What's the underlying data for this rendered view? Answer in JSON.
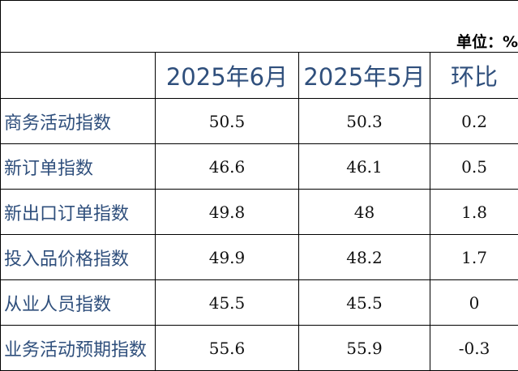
{
  "unit_label": "单位：%",
  "columns": [
    "",
    "2025年6月",
    "2025年5月",
    "环比"
  ],
  "rows": [
    {
      "label": "商务活动指数",
      "jun": "50.5",
      "may": "50.3",
      "mom": "0.2"
    },
    {
      "label": "新订单指数",
      "jun": "46.6",
      "may": "46.1",
      "mom": "0.5"
    },
    {
      "label": "新出口订单指数",
      "jun": "49.8",
      "may": "48",
      "mom": "1.8"
    },
    {
      "label": "投入品价格指数",
      "jun": "49.9",
      "may": "48.2",
      "mom": "1.7"
    },
    {
      "label": "从业人员指数",
      "jun": "45.5",
      "may": "45.5",
      "mom": "0"
    },
    {
      "label": "业务活动预期指数",
      "jun": "55.6",
      "may": "55.9",
      "mom": "-0.3"
    }
  ]
}
